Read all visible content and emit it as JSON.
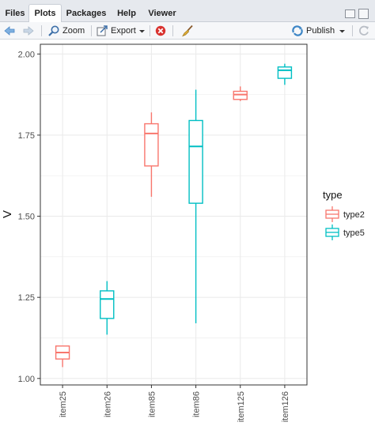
{
  "tabs": [
    "Files",
    "Plots",
    "Packages",
    "Help",
    "Viewer"
  ],
  "active_tab": "Plots",
  "toolbar": {
    "zoom_label": "Zoom",
    "export_label": "Export",
    "publish_label": "Publish"
  },
  "icons": {
    "back": "arrow-left-icon",
    "forward": "arrow-right-icon",
    "zoom": "magnifier-icon",
    "export": "export-icon",
    "remove": "remove-plot-icon",
    "clear": "broom-icon",
    "publish": "publish-icon",
    "refresh": "refresh-icon"
  },
  "colors": {
    "type2": "#F8766D",
    "type5": "#00BFC4",
    "panel_border": "#333333",
    "grid": "#ebebeb"
  },
  "chart_data": {
    "type": "boxplot",
    "title": "",
    "xlabel": "",
    "ylabel": "V",
    "ylim": [
      0.98,
      2.03
    ],
    "yticks": [
      1.0,
      1.25,
      1.5,
      1.75,
      2.0
    ],
    "ytick_labels": [
      "1.00",
      "1.25",
      "1.50",
      "1.75",
      "2.00"
    ],
    "categories": [
      "item25",
      "item26",
      "item85",
      "item86",
      "item125",
      "item126"
    ],
    "grid": true,
    "legend": {
      "title": "type",
      "placement": "right",
      "entries": [
        "type2",
        "type5"
      ]
    },
    "boxes": [
      {
        "category": "item25",
        "group": "type2",
        "min": 1.035,
        "q1": 1.06,
        "median": 1.08,
        "q3": 1.1,
        "max": 1.1
      },
      {
        "category": "item26",
        "group": "type5",
        "min": 1.135,
        "q1": 1.185,
        "median": 1.245,
        "q3": 1.27,
        "max": 1.3
      },
      {
        "category": "item85",
        "group": "type2",
        "min": 1.56,
        "q1": 1.655,
        "median": 1.755,
        "q3": 1.785,
        "max": 1.82
      },
      {
        "category": "item86",
        "group": "type5",
        "min": 1.17,
        "q1": 1.54,
        "median": 1.715,
        "q3": 1.795,
        "max": 1.89
      },
      {
        "category": "item125",
        "group": "type2",
        "min": 1.855,
        "q1": 1.86,
        "median": 1.875,
        "q3": 1.885,
        "max": 1.9
      },
      {
        "category": "item126",
        "group": "type5",
        "min": 1.905,
        "q1": 1.925,
        "median": 1.95,
        "q3": 1.96,
        "max": 1.97
      }
    ]
  }
}
